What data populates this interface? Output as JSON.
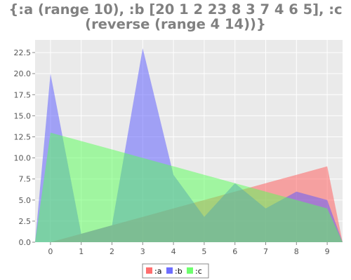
{
  "title_line1": "{:a (range 10), :b [20 1 2 23 8 3 7 4 6 5], :c",
  "title_line2": "(reverse (range 4 14))}",
  "chart_data": {
    "type": "area",
    "title": "{:a (range 10), :b [20 1 2 23 8 3 7 4 6 5], :c (reverse (range 4 14))}",
    "xlabel": "",
    "ylabel": "",
    "x": [
      0,
      1,
      2,
      3,
      4,
      5,
      6,
      7,
      8,
      9
    ],
    "xlim": [
      -0.5,
      9.5
    ],
    "ylim": [
      0,
      24
    ],
    "y_ticks": [
      "0.0",
      "2.5",
      "5.0",
      "7.5",
      "10.0",
      "12.5",
      "15.0",
      "17.5",
      "20.0",
      "22.5"
    ],
    "x_ticks": [
      "0",
      "1",
      "2",
      "3",
      "4",
      "5",
      "6",
      "7",
      "8",
      "9"
    ],
    "grid": true,
    "legend_position": "bottom",
    "series": [
      {
        "name": ":a",
        "color": "#ff5555",
        "values": [
          0,
          1,
          2,
          3,
          4,
          5,
          6,
          7,
          8,
          9
        ]
      },
      {
        "name": ":b",
        "color": "#5555ff",
        "values": [
          20,
          1,
          2,
          23,
          8,
          3,
          7,
          4,
          6,
          5
        ]
      },
      {
        "name": ":c",
        "color": "#55ff55",
        "values": [
          13,
          12,
          11,
          10,
          9,
          8,
          7,
          6,
          5,
          4
        ]
      }
    ]
  }
}
